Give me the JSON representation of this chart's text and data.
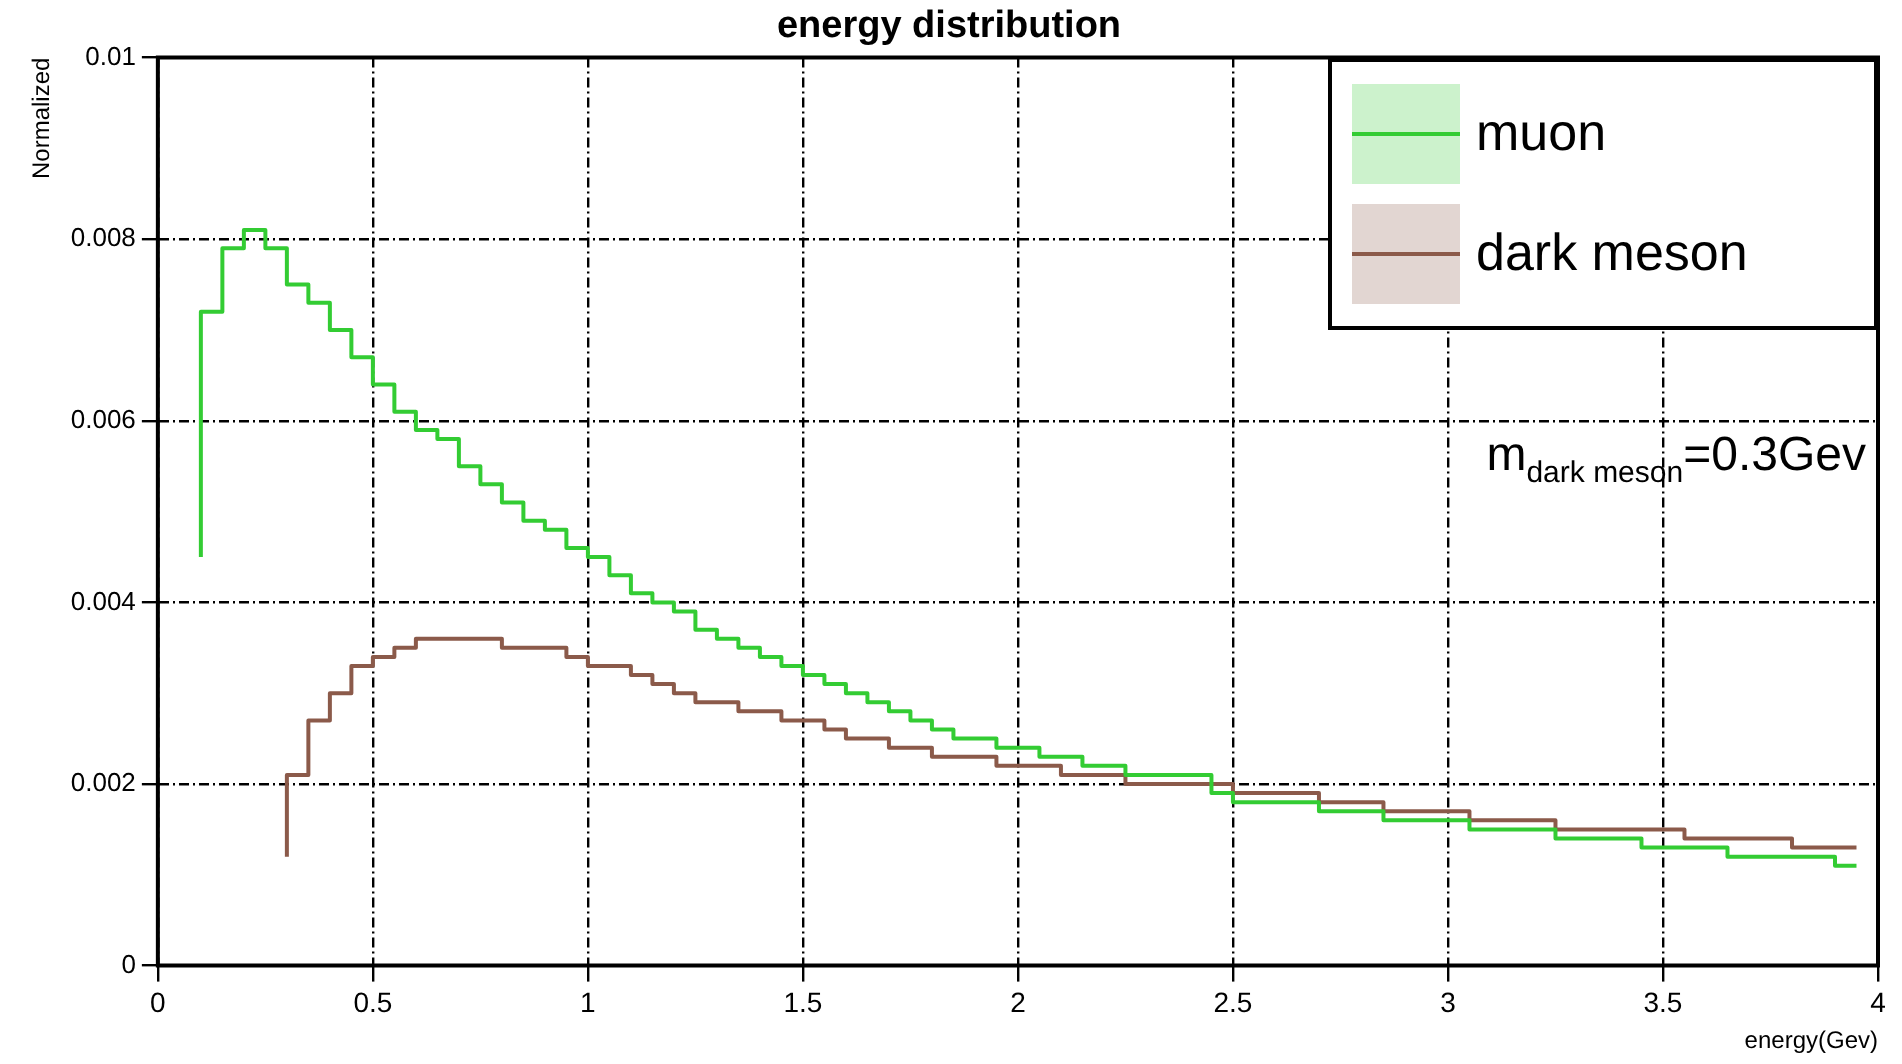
{
  "chart_data": {
    "type": "step",
    "x": [
      0.1,
      0.15,
      0.2,
      0.25,
      0.3,
      0.35,
      0.4,
      0.45,
      0.5,
      0.55,
      0.6,
      0.65,
      0.7,
      0.75,
      0.8,
      0.85,
      0.9,
      0.95,
      1,
      1.05,
      1.1,
      1.15,
      1.2,
      1.25,
      1.3,
      1.35,
      1.4,
      1.45,
      1.5,
      1.55,
      1.6,
      1.65,
      1.7,
      1.75,
      1.8,
      1.85,
      1.9,
      1.95,
      2,
      2.05,
      2.1,
      2.15,
      2.2,
      2.25,
      2.3,
      2.35,
      2.4,
      2.45,
      2.5,
      2.55,
      2.6,
      2.65,
      2.7,
      2.75,
      2.8,
      2.85,
      2.9,
      2.95,
      3,
      3.05,
      3.1,
      3.15,
      3.2,
      3.25,
      3.3,
      3.35,
      3.4,
      3.45,
      3.5,
      3.55,
      3.6,
      3.65,
      3.7,
      3.75,
      3.8,
      3.85,
      3.9,
      3.95
    ],
    "title": "energy distribution",
    "xlabel": "energy(Gev)",
    "ylabel": "Normalized",
    "series": [
      {
        "name": "muon",
        "color": "#33cc33",
        "values": [
          0.0045,
          0.0072,
          0.0079,
          0.0081,
          0.0079,
          0.0075,
          0.0073,
          0.007,
          0.0067,
          0.0064,
          0.0061,
          0.0059,
          0.0058,
          0.0055,
          0.0053,
          0.0051,
          0.0049,
          0.0048,
          0.0046,
          0.0045,
          0.0043,
          0.0041,
          0.004,
          0.0039,
          0.0037,
          0.0036,
          0.0035,
          0.0034,
          0.0033,
          0.0032,
          0.0031,
          0.003,
          0.0029,
          0.0028,
          0.0027,
          0.0026,
          0.0025,
          0.0025,
          0.0024,
          0.0024,
          0.0023,
          0.0023,
          0.0022,
          0.0022,
          0.0021,
          0.0021,
          0.0021,
          0.0021,
          0.0019,
          0.0018,
          0.0018,
          0.0018,
          0.0018,
          0.0017,
          0.0017,
          0.0017,
          0.0016,
          0.0016,
          0.0016,
          0.0016,
          0.0015,
          0.0015,
          0.0015,
          0.0015,
          0.0014,
          0.0014,
          0.0014,
          0.0014,
          0.0013,
          0.0013,
          0.0013,
          0.0013,
          0.0012,
          0.0012,
          0.0012,
          0.0012,
          0.0012,
          0.0011
        ]
      },
      {
        "name": "dark meson",
        "color": "#8b5a4a",
        "values": [
          null,
          null,
          null,
          null,
          0.0012,
          0.0021,
          0.0027,
          0.003,
          0.0033,
          0.0034,
          0.0035,
          0.0036,
          0.0036,
          0.0036,
          0.0036,
          0.0035,
          0.0035,
          0.0035,
          0.0034,
          0.0033,
          0.0033,
          0.0032,
          0.0031,
          0.003,
          0.0029,
          0.0029,
          0.0028,
          0.0028,
          0.0027,
          0.0027,
          0.0026,
          0.0025,
          0.0025,
          0.0024,
          0.0024,
          0.0023,
          0.0023,
          0.0023,
          0.0022,
          0.0022,
          0.0022,
          0.0021,
          0.0021,
          0.0021,
          0.002,
          0.002,
          0.002,
          0.002,
          0.002,
          0.0019,
          0.0019,
          0.0019,
          0.0019,
          0.0018,
          0.0018,
          0.0018,
          0.0017,
          0.0017,
          0.0017,
          0.0017,
          0.0016,
          0.0016,
          0.0016,
          0.0016,
          0.0015,
          0.0015,
          0.0015,
          0.0015,
          0.0015,
          0.0015,
          0.0014,
          0.0014,
          0.0014,
          0.0014,
          0.0014,
          0.0013,
          0.0013,
          0.0013
        ]
      }
    ],
    "xlim": [
      0,
      4
    ],
    "xticks": [
      0,
      0.5,
      1,
      1.5,
      2,
      2.5,
      3,
      3.5,
      4
    ],
    "ylim": [
      0,
      0.01
    ],
    "yticks": [
      0,
      0.002,
      0.004,
      0.006,
      0.008,
      0.01
    ],
    "grid": true,
    "legend": "top right",
    "annotations": [
      "m$_{dark meson}$=0.3Gev"
    ]
  }
}
